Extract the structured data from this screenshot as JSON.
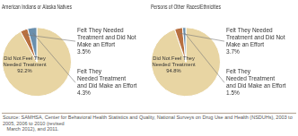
{
  "chart_data": [
    {
      "type": "pie",
      "title": "American Indians or Alaska Natives",
      "values": [
        92.2,
        3.5,
        4.3
      ],
      "colors": [
        "#e8d5a3",
        "#b87040",
        "#6a8fad"
      ],
      "annotations": [
        "Did Not Feel They\nNeeded Treatment\n92.2%",
        "Felt They Needed\nTreatment and Did Not\nMake an Effort\n3.5%",
        "Felt They\nNeeded Treatment\nand Did Make an Effort\n4.3%"
      ]
    },
    {
      "type": "pie",
      "title": "Persons of Other Races/Ethnicities",
      "values": [
        94.8,
        3.7,
        1.5
      ],
      "colors": [
        "#e8d5a3",
        "#b87040",
        "#6a8fad"
      ],
      "annotations": [
        "Did Not Feel They\nNeeded Treatment\n94.8%",
        "Felt They Needed\nTreatment and Did Not\nMake an Effort\n3.7%",
        "Felt They\nNeeded Treatment\nand Did Make an Effort\n1.5%"
      ]
    }
  ],
  "source": "Source: SAMHSA, Center for Behavioral Health Statistics and Quality, National Surveys on Drug Use and Health (NSDUHs), 2003 to 2005, 2006 to 2010 (revised\n   March 2012), and 2011."
}
